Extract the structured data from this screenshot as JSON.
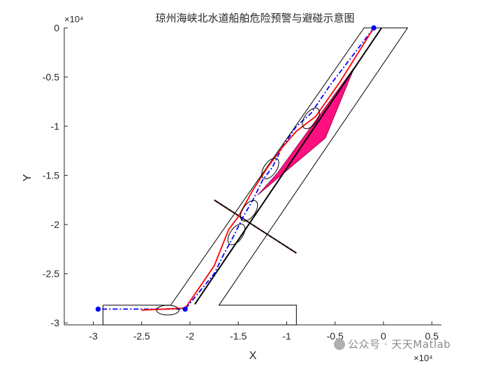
{
  "chart_data": {
    "type": "line",
    "title": "琼州海峡北水道船舶危险预警与避碰示意图",
    "xlabel": "X",
    "ylabel": "Y",
    "x_exponent": "×10⁴",
    "y_exponent": "×10⁴",
    "xlim": [
      -3.3,
      0.6
    ],
    "ylim": [
      -3.02,
      0.0
    ],
    "x_ticks": [
      -3,
      -2.5,
      -2,
      -1.5,
      -1,
      -0.5,
      0,
      0.5
    ],
    "x_tick_labels": [
      "-3",
      "-2.5",
      "-2",
      "-1.5",
      "-1",
      "-0.5",
      "0",
      "0.5"
    ],
    "y_ticks": [
      0,
      -0.5,
      -1,
      -1.5,
      -2,
      -2.5,
      -3
    ],
    "y_tick_labels": [
      "0",
      "-0.5",
      "-1",
      "-1.5",
      "-2",
      "-2.5",
      "-3"
    ],
    "channel_boundary": {
      "color": "#000000",
      "x": [
        -2.9,
        -2.2,
        -0.2,
        0.25,
        -1.7,
        -0.9,
        -0.9,
        -2.9,
        -2.9
      ],
      "y": [
        -2.82,
        -2.82,
        0.0,
        0.0,
        -2.82,
        -2.82,
        -3.02,
        -3.02,
        -2.82
      ]
    },
    "centerline": {
      "color": "#000000",
      "x": [
        -1.95,
        -0.02
      ],
      "y": [
        -2.81,
        0.0
      ]
    },
    "crossing_line": {
      "color": "#6e1410",
      "x": [
        -1.75,
        -0.9
      ],
      "y": [
        -1.75,
        -2.29
      ]
    },
    "danger_zone": {
      "color": "#ff0f80",
      "x": [
        -0.3,
        -1.1,
        -1.3,
        -0.6,
        -0.3
      ],
      "y": [
        -0.4,
        -1.48,
        -1.7,
        -1.12,
        -0.4
      ]
    },
    "series": [
      {
        "color": "#0000ff",
        "style": "dash-dot",
        "x": [
          -0.1,
          -0.55,
          -0.75,
          -0.9,
          -1.05,
          -1.15,
          -1.25,
          -1.35,
          -1.45,
          -1.55,
          -1.65,
          -1.75,
          -2.05,
          -2.55,
          -2.95
        ],
        "y": [
          0.0,
          -0.58,
          -0.87,
          -1.0,
          -1.22,
          -1.42,
          -1.55,
          -1.75,
          -1.92,
          -2.12,
          -2.3,
          -2.5,
          -2.86,
          -2.86,
          -2.86
        ]
      },
      {
        "color": "#ff0000",
        "style": "solid",
        "x": [
          -0.1,
          -0.45,
          -0.7,
          -0.9,
          -1.05,
          -1.2,
          -1.35,
          -1.5,
          -1.6,
          -1.75,
          -2.05,
          -2.5
        ],
        "y": [
          0.0,
          -0.55,
          -0.9,
          -1.05,
          -1.22,
          -1.42,
          -1.65,
          -1.92,
          -2.05,
          -2.42,
          -2.85,
          -2.87
        ]
      }
    ],
    "markers": {
      "color": "#0000ff",
      "x": [
        -0.1,
        -2.05,
        -2.95
      ],
      "y": [
        0.0,
        -2.86,
        -2.86
      ]
    },
    "ellipses": [
      {
        "cx": -0.75,
        "cy": -0.92
      },
      {
        "cx": -1.17,
        "cy": -1.43
      },
      {
        "cx": -1.39,
        "cy": -1.86
      },
      {
        "cx": -1.52,
        "cy": -2.1
      },
      {
        "cx": -2.23,
        "cy": -2.87
      }
    ],
    "grid": false
  },
  "watermark": {
    "text": "公众号 · 天天Matlab"
  }
}
